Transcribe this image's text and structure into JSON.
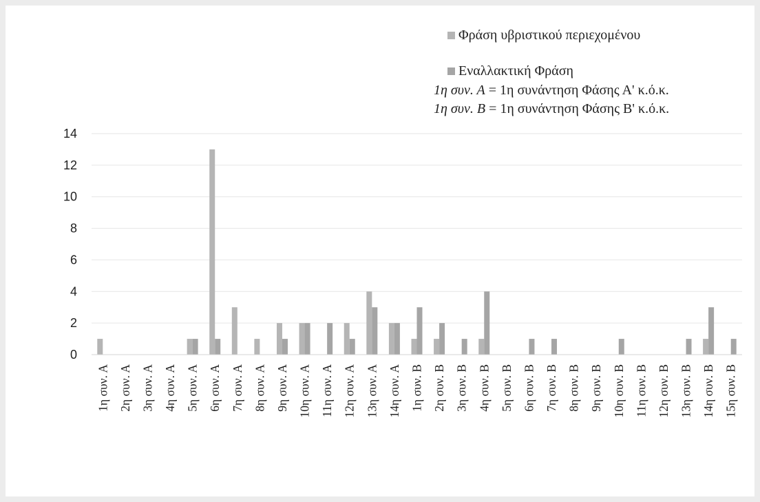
{
  "chart_data": {
    "type": "bar",
    "title": "",
    "xlabel": "",
    "ylabel": "",
    "ylim": [
      0,
      14
    ],
    "yticks": [
      0,
      2,
      4,
      6,
      8,
      10,
      12,
      14
    ],
    "grid": true,
    "legend_position": "top-right",
    "categories": [
      "1η συν. Α",
      "2η συν. Α",
      "3η συν. Α",
      "4η συν. Α",
      "5η συν. Α",
      "6η συν. Α",
      "7η συν. Α",
      "8η συν. Α",
      "9η συν. Α",
      "10η συν. Α",
      "11η συν. Α",
      "12η συν. Α",
      "13η συν. Α",
      "14η συν. Α",
      "1η συν. Β",
      "2η συν. Β",
      "3η συν. Β",
      "4η συν. Β",
      "5η συν. Β",
      "6η συν. Β",
      "7η συν. Β",
      "8η συν. Β",
      "9η συν. Β",
      "10η συν. Β",
      "11η συν. Β",
      "12η συν. Β",
      "13η συν. Β",
      "14η συν. Β",
      "15η συν. Β"
    ],
    "series": [
      {
        "name": "Φράση υβριστικού περιεχομένου",
        "color": "#b5b5b5",
        "values": [
          1,
          0,
          0,
          0,
          1,
          13,
          3,
          1,
          2,
          2,
          0,
          2,
          4,
          2,
          1,
          1,
          0,
          1,
          0,
          0,
          0,
          0,
          0,
          0,
          0,
          0,
          0,
          1,
          0
        ]
      },
      {
        "name": "Εναλλακτική Φράση",
        "color": "#a5a5a5",
        "values": [
          0,
          0,
          0,
          0,
          1,
          1,
          0,
          0,
          1,
          2,
          2,
          1,
          3,
          2,
          3,
          2,
          1,
          4,
          0,
          1,
          1,
          0,
          0,
          1,
          0,
          0,
          1,
          3,
          1
        ]
      }
    ]
  },
  "legend": {
    "items": [
      {
        "label": "Φράση υβριστικού περιεχομένου",
        "color": "#b5b5b5"
      },
      {
        "label": "Εναλλακτική Φράση",
        "color": "#a5a5a5"
      }
    ]
  },
  "notes": [
    {
      "term": "1η συν. Α",
      "definition": " = 1η συνάντηση Φάσης Α' κ.ό.κ."
    },
    {
      "term": "1η συν. Β",
      "definition": " = 1η συνάντηση Φάσης Β' κ.ό.κ."
    }
  ]
}
